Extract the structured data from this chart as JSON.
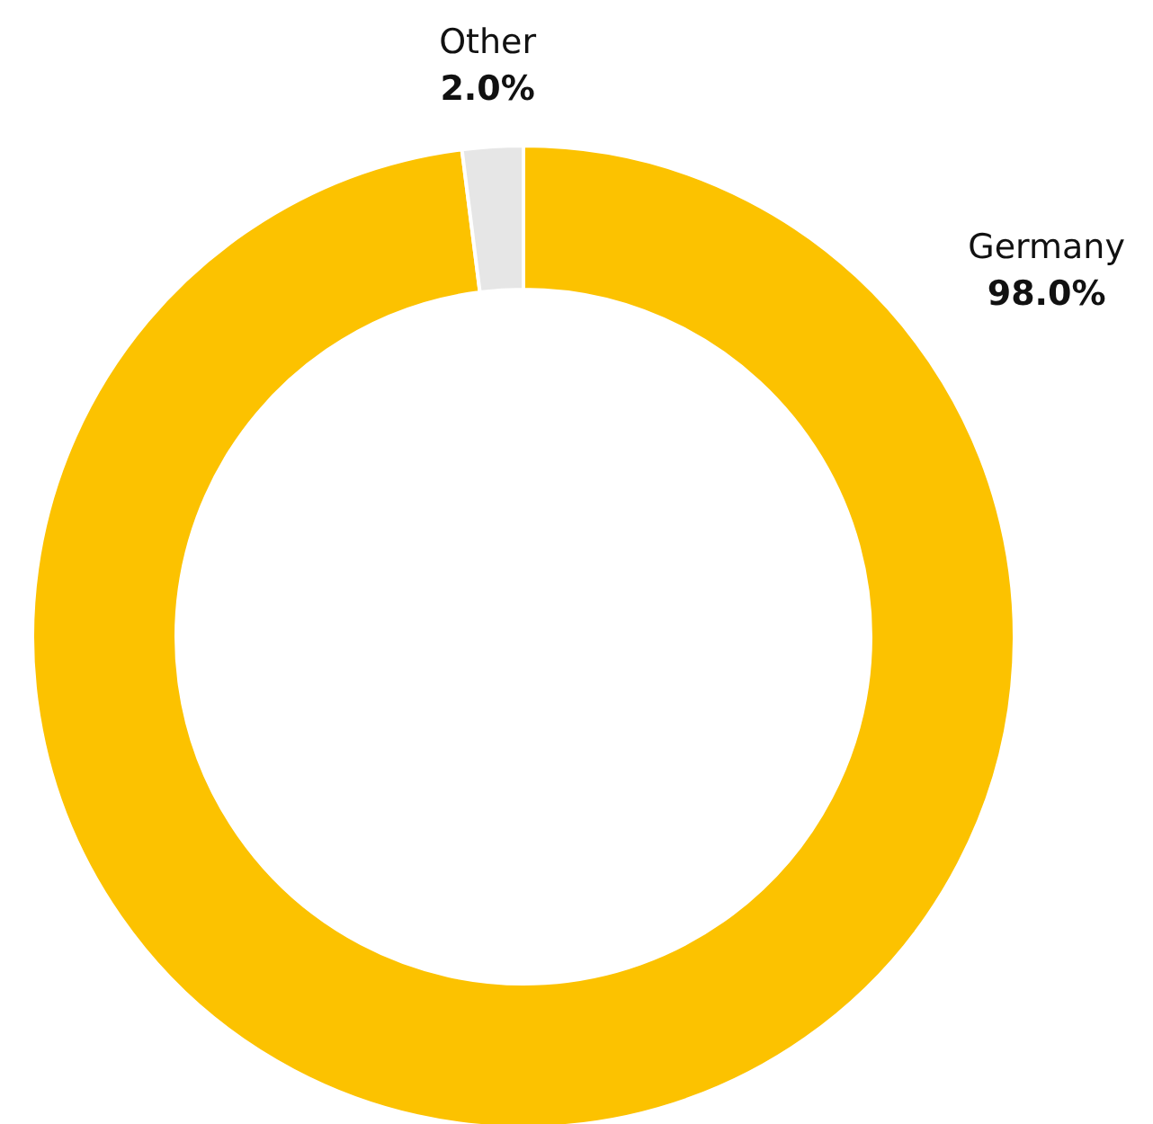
{
  "chart_data": {
    "type": "donut",
    "categories": [
      "Germany",
      "Other"
    ],
    "values": [
      98.0,
      2.0
    ],
    "colors": [
      "#fcc200",
      "#e6e6e6"
    ],
    "value_labels": [
      "98.0%",
      "2.0%"
    ]
  }
}
